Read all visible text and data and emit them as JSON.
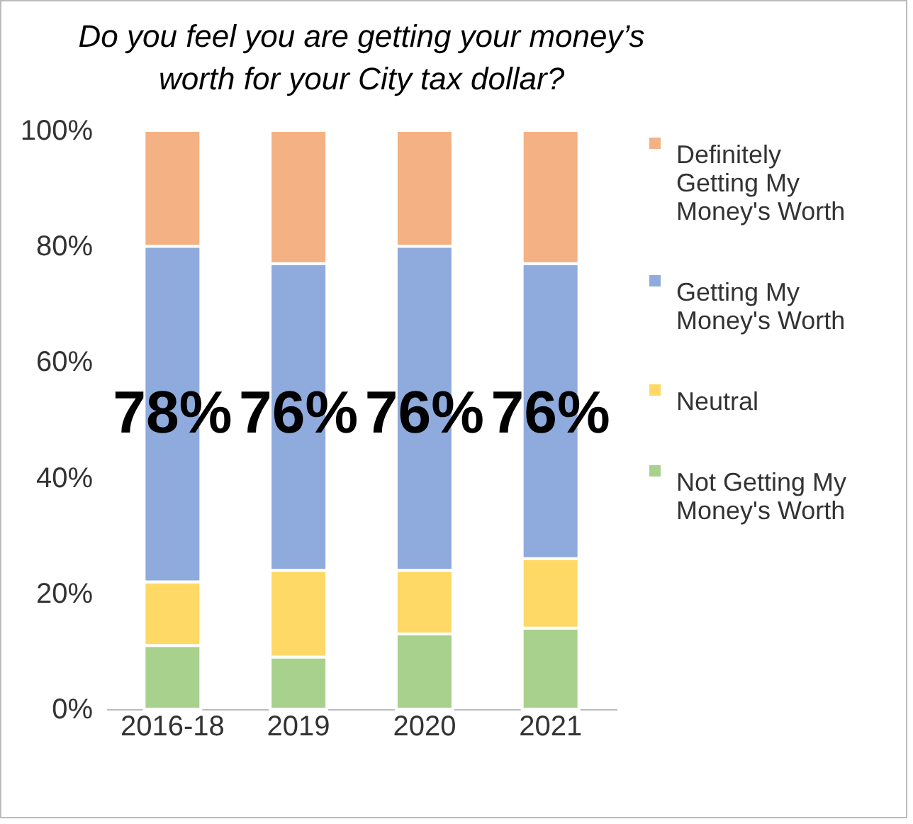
{
  "chart_data": {
    "type": "bar",
    "stacked": true,
    "title": "Do you feel you are getting your money’s worth for your City tax dollar?",
    "categories": [
      "2016-18",
      "2019",
      "2020",
      "2021"
    ],
    "series": [
      {
        "name": "Not Getting My Money's Worth",
        "color": "#a9d18e",
        "values": [
          11,
          9,
          13,
          14
        ]
      },
      {
        "name": "Neutral",
        "color": "#ffd966",
        "values": [
          11,
          15,
          11,
          12
        ]
      },
      {
        "name": "Getting My Money's Worth",
        "color": "#8faadc",
        "values": [
          58,
          53,
          56,
          51
        ]
      },
      {
        "name": "Definitely Getting My Money's Worth",
        "color": "#f4b183",
        "values": [
          20,
          23,
          20,
          23
        ]
      }
    ],
    "ylim": [
      0,
      100
    ],
    "yticks": [
      {
        "value": 0,
        "label": "0%"
      },
      {
        "value": 20,
        "label": "20%"
      },
      {
        "value": 40,
        "label": "40%"
      },
      {
        "value": 60,
        "label": "60%"
      },
      {
        "value": 80,
        "label": "80%"
      },
      {
        "value": 100,
        "label": "100%"
      }
    ],
    "grid": false,
    "legend": "right",
    "annotations": [
      "78%",
      "76%",
      "76%",
      "76%"
    ]
  }
}
